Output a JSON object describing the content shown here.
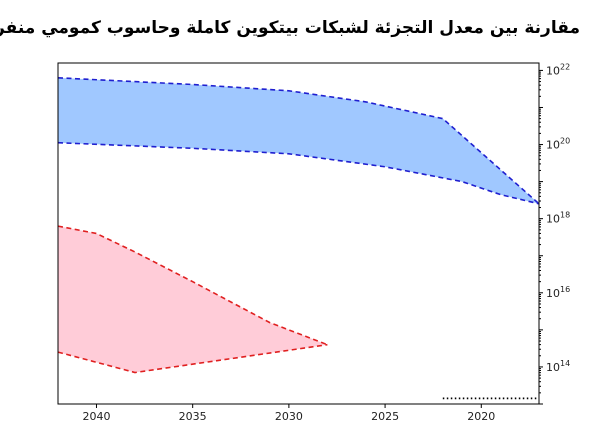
{
  "chart_data": {
    "type": "area",
    "title": "مقارنة بين معدل التجزئة لشبكات بيتكوين كاملة وحاسوب كمومي منفرد",
    "xlabel": "",
    "ylabel": "",
    "x_axis_reversed": true,
    "y_scale": "log",
    "xlim": [
      2017,
      2042
    ],
    "ylim_log10": [
      13,
      22.2
    ],
    "x_ticks": [
      {
        "value": 2040,
        "label": "2040"
      },
      {
        "value": 2035,
        "label": "2035"
      },
      {
        "value": 2030,
        "label": "2030"
      },
      {
        "value": 2025,
        "label": "2025"
      },
      {
        "value": 2020,
        "label": "2020"
      }
    ],
    "y_ticks": [
      {
        "value": 14,
        "label": "14"
      },
      {
        "value": 16,
        "label": "16"
      },
      {
        "value": 18,
        "label": "18"
      },
      {
        "value": 20,
        "label": "20"
      },
      {
        "value": 22,
        "label": "22"
      }
    ],
    "y_tick_base": "10",
    "grid": false,
    "series": [
      {
        "color_line": "#1f1fd0",
        "color_fill": "#a0c8ff",
        "upper": [
          [
            2042,
            21.8
          ],
          [
            2035,
            21.62
          ],
          [
            2030,
            21.45
          ],
          [
            2026,
            21.15
          ],
          [
            2022,
            20.7
          ],
          [
            2017,
            18.4
          ]
        ],
        "lower": [
          [
            2042,
            20.05
          ],
          [
            2035,
            19.9
          ],
          [
            2030,
            19.75
          ],
          [
            2025,
            19.4
          ],
          [
            2021,
            19.0
          ],
          [
            2019,
            18.65
          ],
          [
            2017,
            18.4
          ]
        ]
      },
      {
        "color_line": "#e02020",
        "color_fill": "#ffccd8",
        "upper": [
          [
            2042,
            17.8
          ],
          [
            2040,
            17.6
          ],
          [
            2038,
            17.1
          ],
          [
            2035,
            16.3
          ],
          [
            2031,
            15.2
          ],
          [
            2028,
            14.6
          ]
        ],
        "lower": [
          [
            2042,
            14.4
          ],
          [
            2038,
            13.85
          ],
          [
            2028,
            14.6
          ]
        ]
      },
      {
        "color_line": "#000000",
        "style": "dotted",
        "points": [
          [
            2022,
            13.15
          ],
          [
            2017,
            13.15
          ]
        ]
      }
    ]
  }
}
